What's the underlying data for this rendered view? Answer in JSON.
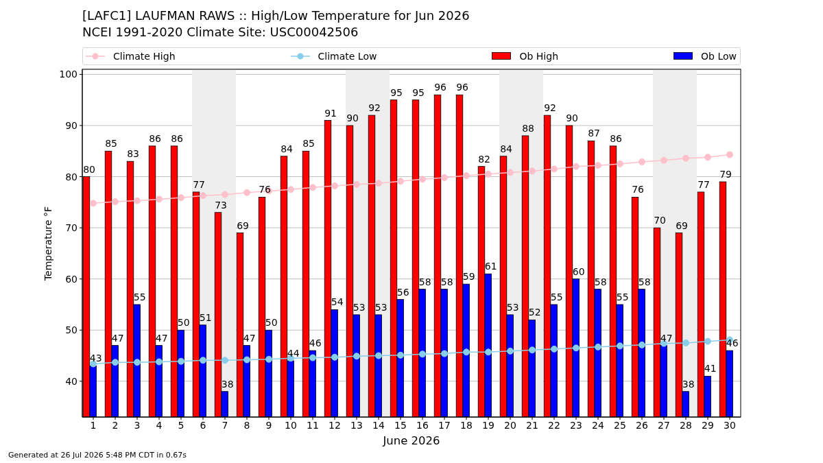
{
  "chart_data": {
    "type": "bar",
    "title": "[LAFC1] LAUFMAN RAWS :: High/Low Temperature for Jun 2026",
    "subtitle": "NCEI 1991-2020 Climate Site: USC00042506",
    "xlabel": "June 2026",
    "ylabel": "Temperature °F",
    "annotations": [
      "Generated at 26 Jul 2026 5:48 PM CDT in 0.67s"
    ],
    "x": [
      1,
      2,
      3,
      4,
      5,
      6,
      7,
      8,
      9,
      10,
      11,
      12,
      13,
      14,
      15,
      16,
      17,
      18,
      19,
      20,
      21,
      22,
      23,
      24,
      25,
      26,
      27,
      28,
      29,
      30
    ],
    "xlim": [
      0.5,
      30.5
    ],
    "xticks": [
      1,
      2,
      3,
      4,
      5,
      6,
      7,
      8,
      9,
      10,
      11,
      12,
      13,
      14,
      15,
      16,
      17,
      18,
      19,
      20,
      21,
      22,
      23,
      24,
      25,
      26,
      27,
      28,
      29,
      30
    ],
    "ylim": [
      33,
      101
    ],
    "yticks": [
      40,
      50,
      60,
      70,
      80,
      90,
      100
    ],
    "grid": "y",
    "legend": "top",
    "bands": [
      {
        "axis": "x",
        "from": 5.5,
        "to": 7.5,
        "color": "#eeeeee"
      },
      {
        "axis": "x",
        "from": 12.5,
        "to": 14.5,
        "color": "#eeeeee"
      },
      {
        "axis": "x",
        "from": 19.5,
        "to": 21.5,
        "color": "#eeeeee"
      },
      {
        "axis": "x",
        "from": 26.5,
        "to": 28.5,
        "color": "#eeeeee"
      }
    ],
    "series": [
      {
        "name": "Climate High",
        "type": "line",
        "color": "#ffc0cb",
        "marker": "circle",
        "values": [
          74.8,
          75.1,
          75.3,
          75.6,
          75.9,
          76.3,
          76.5,
          76.9,
          77.2,
          77.5,
          77.9,
          78.2,
          78.5,
          78.7,
          79.1,
          79.5,
          79.8,
          80.2,
          80.5,
          80.8,
          81.1,
          81.5,
          82.0,
          82.2,
          82.5,
          82.9,
          83.2,
          83.6,
          83.8,
          84.3
        ]
      },
      {
        "name": "Climate Low",
        "type": "line",
        "color": "#87ceeb",
        "marker": "circle",
        "values": [
          43.4,
          43.7,
          43.7,
          43.8,
          43.9,
          44.1,
          44.1,
          44.2,
          44.3,
          44.5,
          44.6,
          44.7,
          44.9,
          45.0,
          45.1,
          45.3,
          45.4,
          45.7,
          45.7,
          45.9,
          46.1,
          46.3,
          46.5,
          46.7,
          46.9,
          47.1,
          47.4,
          47.5,
          47.8,
          48.1
        ]
      },
      {
        "name": "Ob High",
        "color": "#ff0000",
        "values": [
          80,
          85,
          83,
          86,
          86,
          77,
          73,
          69,
          76,
          84,
          85,
          91,
          90,
          92,
          95,
          95,
          96,
          96,
          82,
          84,
          88,
          92,
          90,
          87,
          86,
          76,
          70,
          69,
          77,
          79
        ],
        "value_labels": [
          "80",
          "85",
          "83",
          "86",
          "86",
          "77",
          "73",
          "69",
          "76",
          "84",
          "85",
          "91",
          "90",
          "92",
          "95",
          "95",
          "96",
          "96",
          "82",
          "84",
          "88",
          "92",
          "90",
          "87",
          "86",
          "76",
          "70",
          "69",
          "77",
          "79"
        ]
      },
      {
        "name": "Ob Low",
        "color": "#0000ff",
        "values": [
          43,
          47,
          55,
          47,
          50,
          51,
          38,
          47,
          50,
          44,
          46,
          54,
          53,
          53,
          56,
          58,
          58,
          59,
          61,
          53,
          52,
          55,
          60,
          58,
          55,
          58,
          47,
          38,
          41,
          46
        ],
        "value_labels": [
          "43",
          "47",
          "55",
          "47",
          "50",
          "51",
          "38",
          "47",
          "50",
          "44",
          "46",
          "54",
          "53",
          "53",
          "56",
          "58",
          "58",
          "59",
          "61",
          "53",
          "52",
          "55",
          "60",
          "58",
          "55",
          "58",
          "47",
          "38",
          "41",
          "46"
        ]
      }
    ]
  }
}
